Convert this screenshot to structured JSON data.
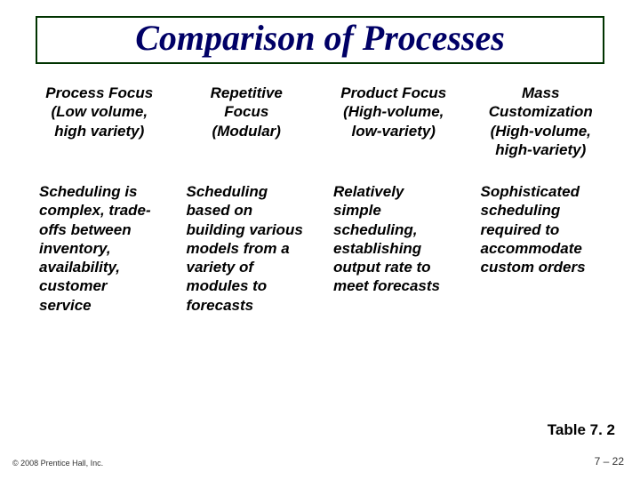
{
  "title": "Comparison of Processes",
  "title_box_border_color": "#003300",
  "title_text_color": "#000066",
  "text_color": "#000000",
  "background_color": "#ffffff",
  "columns": [
    {
      "name": "Process Focus",
      "sub": "(Low volume, high variety)"
    },
    {
      "name": "Repetitive Focus",
      "sub": "(Modular)"
    },
    {
      "name": "Product Focus",
      "sub": "(High-volume, low-variety)"
    },
    {
      "name": "Mass Customization",
      "sub": "(High-volume, high-variety)"
    }
  ],
  "row": [
    "Scheduling is complex, trade-offs between inventory, availability, customer service",
    "Scheduling based on building various models from a variety of modules to forecasts",
    "Relatively simple scheduling, establishing output rate to meet forecasts",
    "Sophisticated scheduling required to accommodate custom orders"
  ],
  "table_label": "Table 7. 2",
  "copyright": "© 2008 Prentice Hall, Inc.",
  "page_number": "7 – 22"
}
